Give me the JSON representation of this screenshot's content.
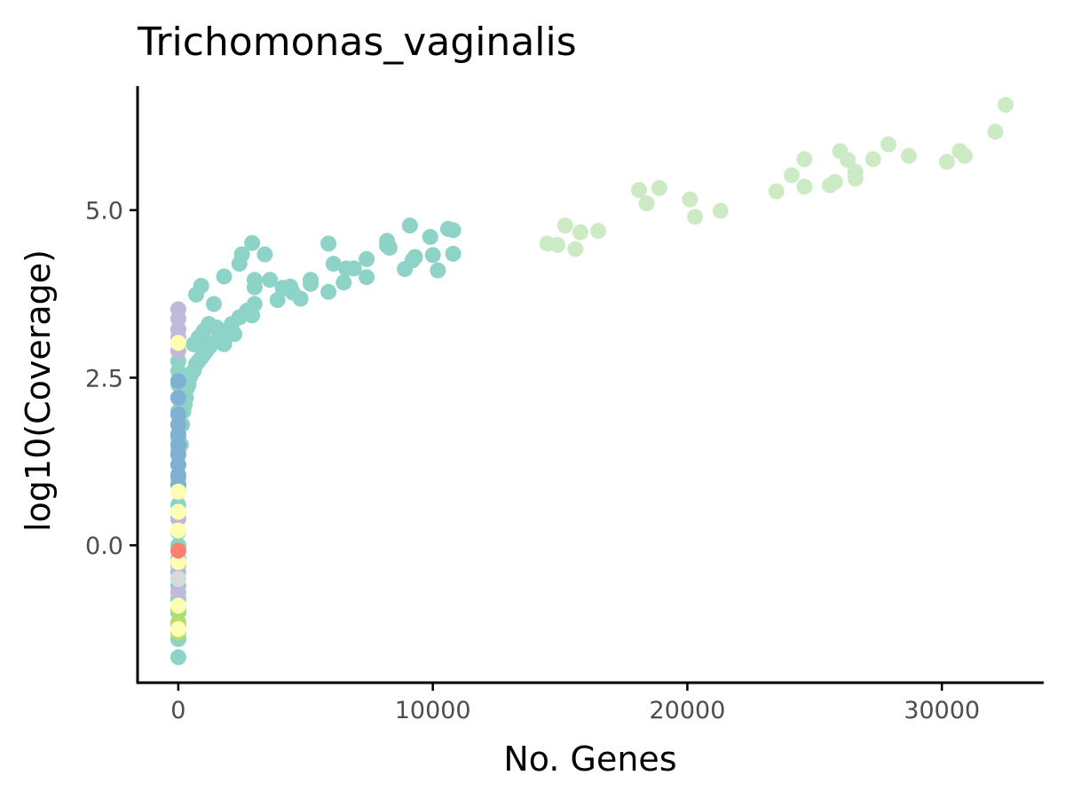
{
  "chart_data": {
    "type": "scatter",
    "title": "Trichomonas_vaginalis",
    "xlabel": "No. Genes",
    "ylabel": "log10(Coverage)",
    "xlim": [
      -1600,
      34000
    ],
    "ylim": [
      -2.05,
      6.85
    ],
    "x_ticks": [
      0,
      10000,
      20000,
      30000
    ],
    "x_tick_labels": [
      "0",
      "10000",
      "20000",
      "30000"
    ],
    "y_ticks": [
      0.0,
      2.5,
      5.0
    ],
    "y_tick_labels": [
      "0.0",
      "2.5",
      "5.0"
    ],
    "grid": false,
    "legend": "none",
    "series": [
      {
        "color": "#ccebc5",
        "points": [
          [
            14500,
            4.5
          ],
          [
            14900,
            4.48
          ],
          [
            15200,
            4.77
          ],
          [
            15600,
            4.42
          ],
          [
            15800,
            4.67
          ],
          [
            16500,
            4.69
          ],
          [
            18100,
            5.3
          ],
          [
            18400,
            5.1
          ],
          [
            18900,
            5.33
          ],
          [
            20100,
            5.16
          ],
          [
            20300,
            4.9
          ],
          [
            21300,
            4.99
          ],
          [
            23500,
            5.28
          ],
          [
            24100,
            5.52
          ],
          [
            24600,
            5.35
          ],
          [
            24600,
            5.76
          ],
          [
            25600,
            5.37
          ],
          [
            25800,
            5.42
          ],
          [
            26000,
            5.88
          ],
          [
            26300,
            5.75
          ],
          [
            26600,
            5.47
          ],
          [
            26600,
            5.57
          ],
          [
            27300,
            5.76
          ],
          [
            27900,
            5.98
          ],
          [
            28700,
            5.81
          ],
          [
            30200,
            5.72
          ],
          [
            30700,
            5.88
          ],
          [
            30900,
            5.81
          ],
          [
            32100,
            6.17
          ],
          [
            32500,
            6.57
          ]
        ]
      },
      {
        "color": "#8dd3c7",
        "points": [
          [
            0,
            -1.67
          ],
          [
            0,
            -1.4
          ],
          [
            0,
            -1.2
          ],
          [
            0,
            -1.0
          ],
          [
            0,
            -0.8
          ],
          [
            0,
            -0.6
          ],
          [
            0,
            -0.4
          ],
          [
            0,
            -0.2
          ],
          [
            0,
            0.0
          ],
          [
            0,
            0.2
          ],
          [
            0,
            0.4
          ],
          [
            0,
            0.6
          ],
          [
            0,
            0.8
          ],
          [
            0,
            1.0
          ],
          [
            0,
            1.2
          ],
          [
            0,
            1.4
          ],
          [
            0,
            1.6
          ],
          [
            0,
            1.8
          ],
          [
            0,
            2.0
          ],
          [
            0,
            2.2
          ],
          [
            0,
            2.4
          ],
          [
            0,
            2.6
          ],
          [
            0,
            2.75
          ],
          [
            100,
            1.5
          ],
          [
            150,
            1.8
          ],
          [
            200,
            2.0
          ],
          [
            250,
            2.1
          ],
          [
            300,
            2.2
          ],
          [
            350,
            2.35
          ],
          [
            400,
            2.4
          ],
          [
            450,
            2.5
          ],
          [
            500,
            2.55
          ],
          [
            600,
            2.6
          ],
          [
            700,
            2.7
          ],
          [
            800,
            2.75
          ],
          [
            900,
            2.8
          ],
          [
            1000,
            2.85
          ],
          [
            1100,
            2.9
          ],
          [
            1200,
            2.95
          ],
          [
            1300,
            3.0
          ],
          [
            1500,
            3.05
          ],
          [
            1700,
            3.1
          ],
          [
            1900,
            3.2
          ],
          [
            2100,
            3.3
          ],
          [
            2400,
            3.4
          ],
          [
            2700,
            3.5
          ],
          [
            3000,
            3.6
          ],
          [
            600,
            3.0
          ],
          [
            800,
            3.1
          ],
          [
            1000,
            3.2
          ],
          [
            1200,
            3.3
          ],
          [
            1500,
            3.25
          ],
          [
            1800,
            3.0
          ],
          [
            2200,
            3.15
          ],
          [
            2900,
            3.43
          ],
          [
            700,
            3.74
          ],
          [
            900,
            3.87
          ],
          [
            1400,
            3.6
          ],
          [
            1800,
            4.01
          ],
          [
            2400,
            4.2
          ],
          [
            2500,
            4.34
          ],
          [
            2900,
            4.51
          ],
          [
            3000,
            3.96
          ],
          [
            3000,
            3.85
          ],
          [
            3400,
            4.34
          ],
          [
            3600,
            3.96
          ],
          [
            3900,
            3.66
          ],
          [
            4100,
            3.84
          ],
          [
            4400,
            3.86
          ],
          [
            4500,
            3.77
          ],
          [
            4800,
            3.68
          ],
          [
            5200,
            3.96
          ],
          [
            5200,
            3.9
          ],
          [
            5900,
            4.5
          ],
          [
            5900,
            3.78
          ],
          [
            6100,
            4.2
          ],
          [
            6500,
            3.92
          ],
          [
            6600,
            4.13
          ],
          [
            6900,
            4.13
          ],
          [
            7400,
            4.27
          ],
          [
            7400,
            4.0
          ],
          [
            8200,
            4.54
          ],
          [
            8200,
            4.47
          ],
          [
            8300,
            4.44
          ],
          [
            8900,
            4.12
          ],
          [
            9100,
            4.77
          ],
          [
            9200,
            4.25
          ],
          [
            9300,
            4.3
          ],
          [
            9900,
            4.6
          ],
          [
            10000,
            4.33
          ],
          [
            10200,
            4.1
          ],
          [
            10600,
            4.72
          ],
          [
            10800,
            4.35
          ],
          [
            10800,
            4.7
          ]
        ]
      },
      {
        "color": "#bebada",
        "points": [
          [
            0,
            3.52
          ],
          [
            0,
            3.38
          ],
          [
            0,
            3.22
          ],
          [
            0,
            3.1
          ],
          [
            0,
            2.9
          ],
          [
            0,
            0.9
          ],
          [
            0,
            0.4
          ],
          [
            0,
            -0.3
          ],
          [
            0,
            -0.7
          ]
        ]
      },
      {
        "color": "#80b1d3",
        "points": [
          [
            0,
            2.45
          ],
          [
            0,
            2.2
          ],
          [
            0,
            1.95
          ],
          [
            0,
            1.8
          ],
          [
            0,
            1.65
          ],
          [
            0,
            1.5
          ],
          [
            0,
            1.35
          ],
          [
            0,
            1.2
          ],
          [
            0,
            1.05
          ],
          [
            0,
            0.9
          ]
        ]
      },
      {
        "color": "#b3de69",
        "points": [
          [
            0,
            -0.95
          ],
          [
            0,
            -1.15
          ],
          [
            0,
            -1.3
          ]
        ]
      },
      {
        "color": "#ffffb3",
        "points": [
          [
            0,
            3.02
          ],
          [
            0,
            0.8
          ],
          [
            0,
            0.5
          ],
          [
            0,
            0.22
          ],
          [
            0,
            -0.25
          ],
          [
            0,
            -0.9
          ],
          [
            0,
            -1.25
          ]
        ]
      },
      {
        "color": "#fb8072",
        "points": [
          [
            0,
            -0.08
          ]
        ]
      },
      {
        "color": "#d9d9d9",
        "points": [
          [
            0,
            -0.5
          ]
        ]
      }
    ]
  }
}
